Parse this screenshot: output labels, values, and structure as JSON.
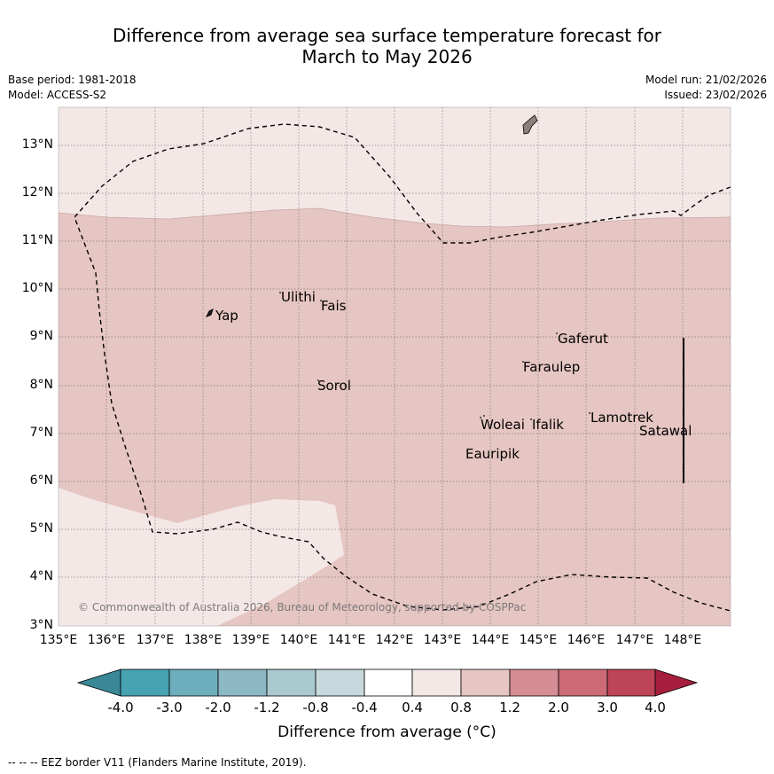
{
  "title_line1": "Difference from average sea surface temperature forecast for",
  "title_line2": "March to May 2026",
  "base_period": "Base period: 1981-2018",
  "model": "Model: ACCESS-S2",
  "model_run": "Model run: 21/02/2026",
  "issued": "Issued: 23/02/2026",
  "lat_ticks": [
    "13°N",
    "12°N",
    "11°N",
    "10°N",
    "9°N",
    "8°N",
    "7°N",
    "6°N",
    "5°N",
    "4°N",
    "3°N"
  ],
  "lon_ticks": [
    "135°E",
    "136°E",
    "137°E",
    "138°E",
    "139°E",
    "140°E",
    "141°E",
    "142°E",
    "143°E",
    "144°E",
    "145°E",
    "146°E",
    "147°E",
    "148°E"
  ],
  "places": {
    "yap": "Yap",
    "ulithi": "Ulithi",
    "fais": "Fais",
    "sorol": "Sorol",
    "gaferut": "Gaferut",
    "faraulep": "Faraulep",
    "woleai": "Woleai",
    "ifalik": "Ifalik",
    "lamotrek": "Lamotrek",
    "satawal": "Satawal",
    "eauripik": "Eauripik"
  },
  "copyright": "© Commonwealth of Australia 2026, Bureau of Meteorology, supported by COSPPac",
  "colorbar": {
    "labels": [
      "-4.0",
      "-3.0",
      "-2.0",
      "-1.2",
      "-0.8",
      "-0.4",
      "0.4",
      "0.8",
      "1.2",
      "2.0",
      "3.0",
      "4.0"
    ],
    "colors": [
      "#3a8796",
      "#47a2b2",
      "#6daebc",
      "#8cb8c4",
      "#a9c9cf",
      "#c7d9dd",
      "#ffffff",
      "#f4e8e7",
      "#e6c6c2",
      "#d58d93",
      "#cc6b76",
      "#be4557",
      "#a51e3d"
    ],
    "title": "Difference from average (°C)"
  },
  "map_colors": {
    "band_0_4_to_0_8": "#f4e8e7",
    "band_0_8_to_1_2": "#e6c6c2"
  },
  "footnote": "-- -- -- EEZ border V11 (Flanders Marine Institute, 2019)."
}
